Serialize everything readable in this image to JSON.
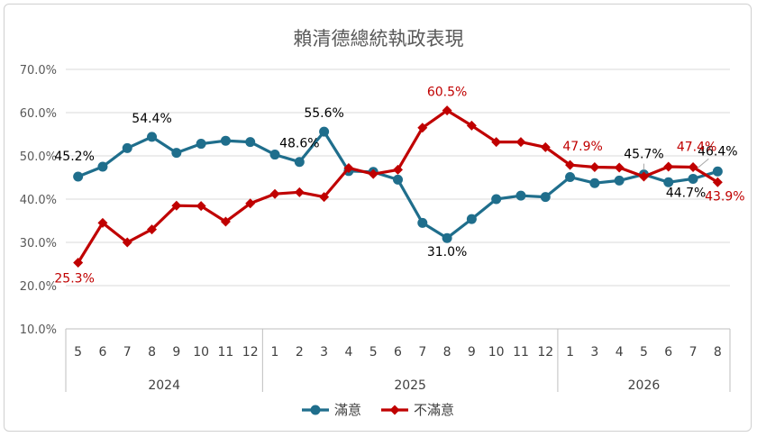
{
  "chart_data": {
    "type": "line",
    "title": "賴清德總統執政表現",
    "y_ticks": [
      "10.0%",
      "20.0%",
      "30.0%",
      "40.0%",
      "50.0%",
      "60.0%",
      "70.0%"
    ],
    "ylim": [
      10,
      70
    ],
    "grid": true,
    "legend_position": "bottom",
    "categories": [
      "5",
      "6",
      "7",
      "8",
      "9",
      "10",
      "11",
      "12",
      "1",
      "2",
      "3",
      "4",
      "5",
      "6",
      "7",
      "8",
      "9",
      "10",
      "11",
      "12",
      "1",
      "3",
      "4",
      "5",
      "6",
      "7",
      "8"
    ],
    "year_groups": [
      {
        "label": "2024",
        "count": 8
      },
      {
        "label": "2025",
        "count": 12
      },
      {
        "label": "2026",
        "count": 7
      }
    ],
    "series": [
      {
        "name": "滿意",
        "color": "#1F6E8C",
        "values": [
          45.2,
          47.5,
          51.8,
          54.4,
          50.7,
          52.8,
          53.5,
          53.2,
          50.3,
          48.6,
          55.6,
          46.5,
          46.3,
          44.5,
          34.5,
          31.0,
          35.4,
          40.0,
          40.8,
          40.5,
          45.1,
          43.7,
          44.3,
          45.7,
          43.9,
          44.7,
          46.4
        ],
        "labels": {
          "0": "45.2%",
          "3": "54.4%",
          "9": "48.6%",
          "10": "55.6%",
          "15": "31.0%",
          "23": "45.7%",
          "25": "44.7%",
          "26": "46.4%"
        }
      },
      {
        "name": "不滿意",
        "color": "#C00000",
        "values": [
          25.3,
          34.5,
          30.0,
          33.0,
          38.5,
          38.4,
          34.8,
          39.0,
          41.2,
          41.6,
          40.5,
          47.2,
          45.8,
          46.8,
          56.5,
          60.5,
          57.0,
          53.2,
          53.2,
          52.0,
          47.9,
          47.4,
          47.3,
          45.2,
          47.5,
          47.4,
          43.9
        ],
        "labels": {
          "0": "25.3%",
          "15": "60.5%",
          "20": "47.9%",
          "25": "47.4%",
          "26": "43.9%"
        }
      }
    ]
  },
  "colors": {
    "axis": "#bfbfbf",
    "grid": "#d9d9d9",
    "label_dark": "#000000",
    "label_red": "#C00000"
  }
}
